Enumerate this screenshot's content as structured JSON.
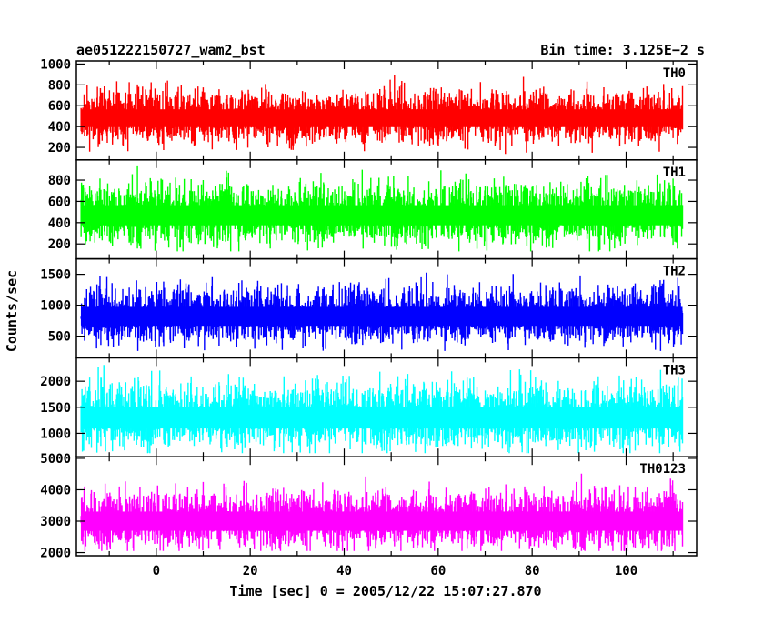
{
  "chart_data": {
    "type": "line",
    "title_left": "ae051222150727_wam2_bst",
    "title_right": "Bin time: 3.125E−2 s",
    "ylabel": "Counts/sec",
    "xlabel": "Time [sec] 0 = 2005/12/22 15:07:27.870",
    "xlim": [
      -17,
      115
    ],
    "data_range": [
      -16,
      112
    ],
    "x_ticks": [
      0,
      20,
      40,
      60,
      80,
      100
    ],
    "x_tick_labels": [
      "0",
      "20",
      "40",
      "60",
      "80",
      "100"
    ],
    "grid": false,
    "panels": [
      {
        "label": "TH0",
        "color": "#ff0000",
        "ylim": [
          80,
          1030
        ],
        "y_ticks": [
          200,
          400,
          600,
          800,
          1000
        ],
        "y_tick_labels": [
          "200",
          "400",
          "600",
          "800",
          "1000"
        ],
        "mean": 480,
        "spread": 95,
        "min_clip": 110,
        "max_clip": 1025
      },
      {
        "label": "TH1",
        "color": "#00ff00",
        "ylim": [
          60,
          990
        ],
        "y_ticks": [
          200,
          400,
          600,
          800
        ],
        "y_tick_labels": [
          "200",
          "400",
          "600",
          "800"
        ],
        "mean": 470,
        "spread": 105,
        "min_clip": 130,
        "max_clip": 985
      },
      {
        "label": "TH2",
        "color": "#0000ff",
        "ylim": [
          150,
          1750
        ],
        "y_ticks": [
          500,
          1000,
          1500
        ],
        "y_tick_labels": [
          "500",
          "1000",
          "1500"
        ],
        "mean": 820,
        "spread": 170,
        "min_clip": 260,
        "max_clip": 1700
      },
      {
        "label": "TH3",
        "color": "#00ffff",
        "ylim": [
          550,
          2450
        ],
        "y_ticks": [
          1000,
          1500,
          2000
        ],
        "y_tick_labels": [
          "1000",
          "1500",
          "2000"
        ],
        "mean": 1300,
        "spread": 230,
        "min_clip": 620,
        "max_clip": 2400
      },
      {
        "label": "TH0123",
        "color": "#ff00ff",
        "ylim": [
          1900,
          5050
        ],
        "y_ticks": [
          2000,
          3000,
          4000,
          5000
        ],
        "y_tick_labels": [
          "2000",
          "3000",
          "4000",
          "5000"
        ],
        "mean": 3000,
        "spread": 340,
        "min_clip": 2050,
        "max_clip": 4950
      }
    ]
  }
}
